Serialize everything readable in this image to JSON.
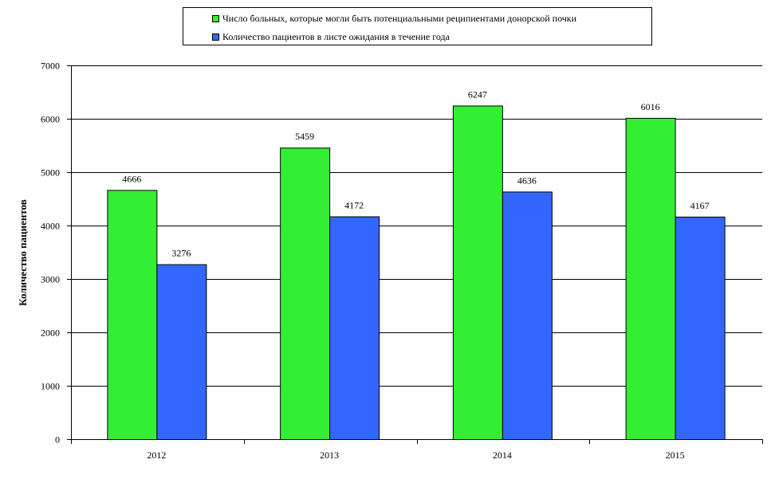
{
  "chart_data": {
    "type": "bar",
    "categories": [
      "2012",
      "2013",
      "2014",
      "2015"
    ],
    "series": [
      {
        "name": "Число больных, которые могли быть потенциальными реципиентами донорской почки",
        "color": "#33ee33",
        "values": [
          4666,
          5459,
          6247,
          6016
        ]
      },
      {
        "name": "Количество пациентов в листе ожидания в течение года",
        "color": "#3366ff",
        "values": [
          3276,
          4172,
          4636,
          4167
        ]
      }
    ],
    "ylabel": "Количество пациентов",
    "ylim": [
      0,
      7000
    ],
    "yticks": [
      "0",
      "1000",
      "2000",
      "3000",
      "4000",
      "5000",
      "6000",
      "7000"
    ],
    "grid": true,
    "legend_position": "top"
  }
}
